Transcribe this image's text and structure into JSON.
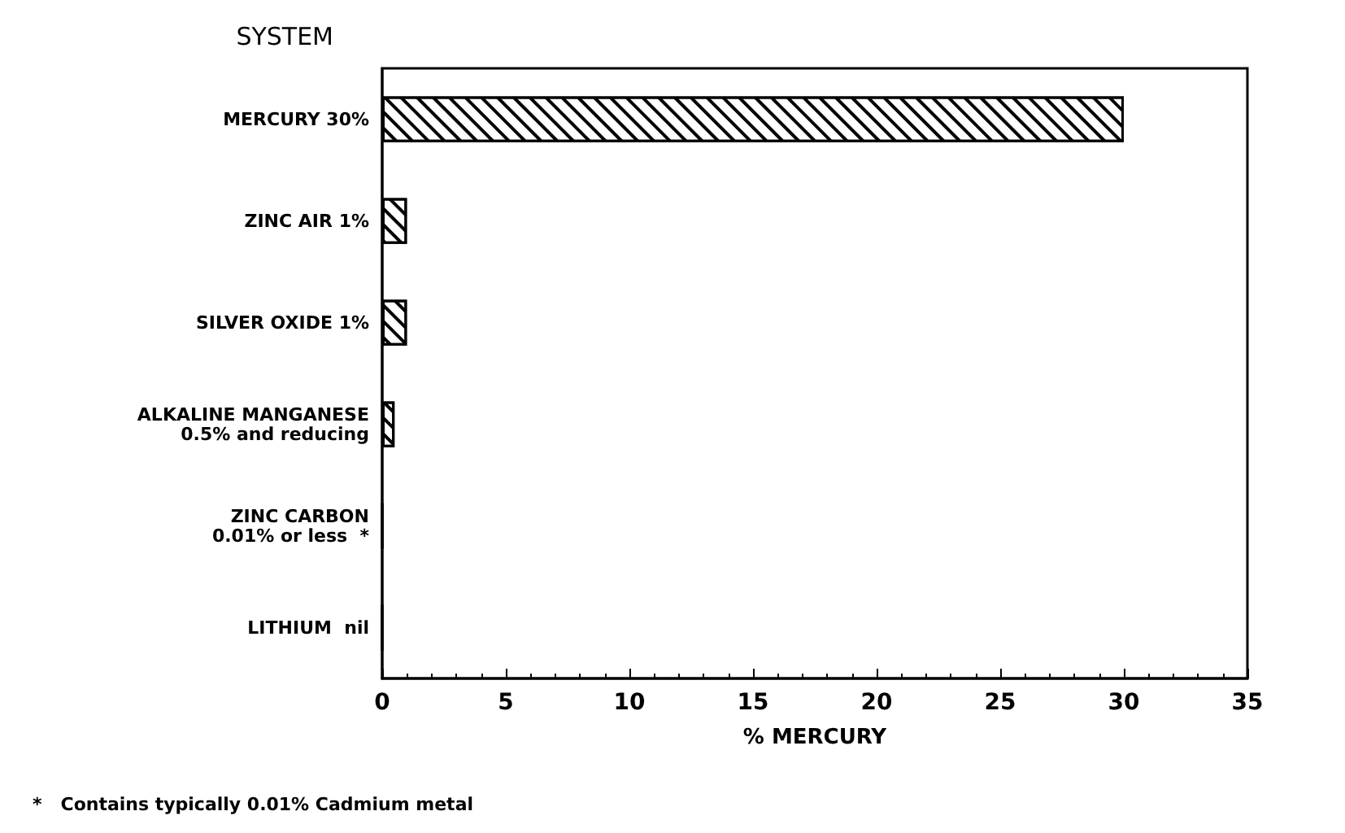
{
  "chart_data": {
    "type": "bar",
    "orientation": "horizontal",
    "ylabel": "SYSTEM",
    "xlabel": "% MERCURY",
    "categories": [
      "MERCURY 30%",
      "ZINC AIR 1%",
      "SILVER OXIDE 1%",
      "ALKALINE MANGANESE\n0.5% and reducing",
      "ZINC CARBON\n0.01% or less  *",
      "LITHIUM  nil"
    ],
    "values": [
      30,
      1,
      1,
      0.5,
      0.01,
      0
    ],
    "color": "#ffffff",
    "xlim": [
      0,
      35
    ],
    "xticks": [
      0,
      5,
      10,
      15,
      20,
      25,
      30,
      35
    ],
    "annotations": [
      "*   Contains typically 0.01% Cadmium metal"
    ]
  }
}
